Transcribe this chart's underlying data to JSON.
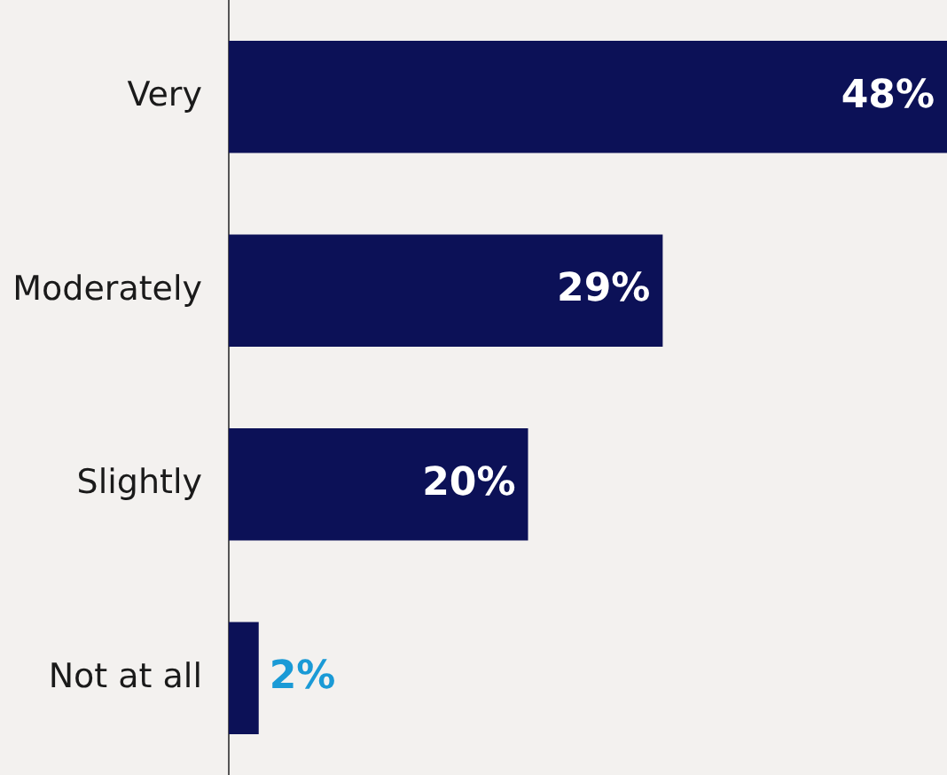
{
  "chart_data": {
    "type": "bar",
    "orientation": "horizontal",
    "categories": [
      "Very",
      "Moderately",
      "Slightly",
      "Not at all"
    ],
    "values": [
      48,
      29,
      20,
      2
    ],
    "value_labels": [
      "48%",
      "29%",
      "20%",
      "2%"
    ],
    "color": "#0c1157"
  }
}
